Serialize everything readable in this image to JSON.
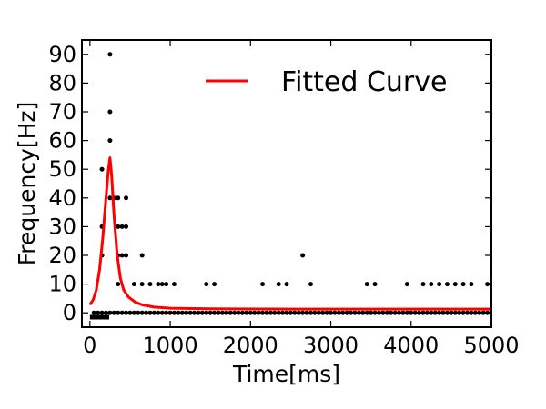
{
  "chart_data": {
    "type": "scatter",
    "title": "",
    "xlabel": "Time[ms]",
    "ylabel": "Frequency[Hz]",
    "xlim": [
      -100,
      5000
    ],
    "ylim": [
      -5,
      95
    ],
    "xticks": [
      0,
      1000,
      2000,
      3000,
      4000,
      5000
    ],
    "xtick_labels": [
      "0",
      "1000",
      "2000",
      "3000",
      "4000",
      "5000"
    ],
    "yticks": [
      0,
      10,
      20,
      30,
      40,
      50,
      60,
      70,
      80,
      90
    ],
    "ytick_labels": [
      "0",
      "10",
      "20",
      "30",
      "40",
      "50",
      "60",
      "70",
      "80",
      "90"
    ],
    "grid": false,
    "legend": {
      "position": "top-right",
      "entries": [
        {
          "label": "Fitted Curve",
          "color": "#ff0000"
        }
      ]
    },
    "stimulus_bar": {
      "x_start": 0,
      "x_end": 240,
      "y": -1.5,
      "color": "#000000"
    },
    "series": [
      {
        "kind": "points",
        "color": "#000000",
        "points": [
          [
            50,
            0
          ],
          [
            100,
            0
          ],
          [
            150,
            0
          ],
          [
            200,
            0
          ],
          [
            250,
            0
          ],
          [
            300,
            0
          ],
          [
            350,
            0
          ],
          [
            400,
            0
          ],
          [
            450,
            0
          ],
          [
            500,
            0
          ],
          [
            550,
            0
          ],
          [
            600,
            0
          ],
          [
            650,
            0
          ],
          [
            700,
            0
          ],
          [
            750,
            0
          ],
          [
            800,
            0
          ],
          [
            850,
            0
          ],
          [
            900,
            0
          ],
          [
            950,
            0
          ],
          [
            1000,
            0
          ],
          [
            1050,
            0
          ],
          [
            1100,
            0
          ],
          [
            1150,
            0
          ],
          [
            1200,
            0
          ],
          [
            1250,
            0
          ],
          [
            1300,
            0
          ],
          [
            1350,
            0
          ],
          [
            1400,
            0
          ],
          [
            1450,
            0
          ],
          [
            1500,
            0
          ],
          [
            1550,
            0
          ],
          [
            1600,
            0
          ],
          [
            1650,
            0
          ],
          [
            1700,
            0
          ],
          [
            1750,
            0
          ],
          [
            1800,
            0
          ],
          [
            1850,
            0
          ],
          [
            1900,
            0
          ],
          [
            1950,
            0
          ],
          [
            2000,
            0
          ],
          [
            2050,
            0
          ],
          [
            2100,
            0
          ],
          [
            2150,
            0
          ],
          [
            2200,
            0
          ],
          [
            2250,
            0
          ],
          [
            2300,
            0
          ],
          [
            2350,
            0
          ],
          [
            2400,
            0
          ],
          [
            2450,
            0
          ],
          [
            2500,
            0
          ],
          [
            2550,
            0
          ],
          [
            2600,
            0
          ],
          [
            2650,
            0
          ],
          [
            2700,
            0
          ],
          [
            2750,
            0
          ],
          [
            2800,
            0
          ],
          [
            2850,
            0
          ],
          [
            2900,
            0
          ],
          [
            2950,
            0
          ],
          [
            3000,
            0
          ],
          [
            3050,
            0
          ],
          [
            3100,
            0
          ],
          [
            3150,
            0
          ],
          [
            3200,
            0
          ],
          [
            3250,
            0
          ],
          [
            3300,
            0
          ],
          [
            3350,
            0
          ],
          [
            3400,
            0
          ],
          [
            3450,
            0
          ],
          [
            3500,
            0
          ],
          [
            3550,
            0
          ],
          [
            3600,
            0
          ],
          [
            3650,
            0
          ],
          [
            3700,
            0
          ],
          [
            3750,
            0
          ],
          [
            3800,
            0
          ],
          [
            3850,
            0
          ],
          [
            3900,
            0
          ],
          [
            3950,
            0
          ],
          [
            4000,
            0
          ],
          [
            4050,
            0
          ],
          [
            4100,
            0
          ],
          [
            4150,
            0
          ],
          [
            4200,
            0
          ],
          [
            4250,
            0
          ],
          [
            4300,
            0
          ],
          [
            4350,
            0
          ],
          [
            4400,
            0
          ],
          [
            4450,
            0
          ],
          [
            4500,
            0
          ],
          [
            4550,
            0
          ],
          [
            4600,
            0
          ],
          [
            4650,
            0
          ],
          [
            4700,
            0
          ],
          [
            4750,
            0
          ],
          [
            4800,
            0
          ],
          [
            4850,
            0
          ],
          [
            4900,
            0
          ],
          [
            4950,
            0
          ],
          [
            5000,
            0
          ],
          [
            150,
            50
          ],
          [
            150,
            30
          ],
          [
            150,
            20
          ],
          [
            250,
            90
          ],
          [
            250,
            70
          ],
          [
            250,
            60
          ],
          [
            250,
            40
          ],
          [
            300,
            40
          ],
          [
            350,
            30
          ],
          [
            350,
            20
          ],
          [
            350,
            10
          ],
          [
            350,
            40
          ],
          [
            400,
            30
          ],
          [
            400,
            20
          ],
          [
            450,
            40
          ],
          [
            450,
            30
          ],
          [
            450,
            20
          ],
          [
            550,
            10
          ],
          [
            650,
            20
          ],
          [
            650,
            10
          ],
          [
            750,
            10
          ],
          [
            850,
            10
          ],
          [
            900,
            10
          ],
          [
            950,
            10
          ],
          [
            1050,
            10
          ],
          [
            1450,
            10
          ],
          [
            1550,
            10
          ],
          [
            2150,
            10
          ],
          [
            2350,
            10
          ],
          [
            2450,
            10
          ],
          [
            2650,
            20
          ],
          [
            2750,
            10
          ],
          [
            3450,
            10
          ],
          [
            3550,
            10
          ],
          [
            3950,
            10
          ],
          [
            4150,
            10
          ],
          [
            4250,
            10
          ],
          [
            4350,
            10
          ],
          [
            4450,
            10
          ],
          [
            4550,
            10
          ],
          [
            4650,
            10
          ],
          [
            4750,
            10
          ],
          [
            4950,
            10
          ]
        ]
      },
      {
        "name": "Fitted Curve",
        "kind": "line",
        "color": "#ff0000",
        "points": [
          [
            0,
            2.8
          ],
          [
            40,
            4.5
          ],
          [
            80,
            8
          ],
          [
            120,
            15
          ],
          [
            160,
            26
          ],
          [
            200,
            40
          ],
          [
            230,
            50
          ],
          [
            250,
            54
          ],
          [
            270,
            48
          ],
          [
            300,
            34
          ],
          [
            340,
            20
          ],
          [
            380,
            12
          ],
          [
            420,
            8
          ],
          [
            480,
            5.5
          ],
          [
            560,
            3.8
          ],
          [
            650,
            2.8
          ],
          [
            800,
            2
          ],
          [
            1000,
            1.6
          ],
          [
            1500,
            1.4
          ],
          [
            2500,
            1.3
          ],
          [
            5000,
            1.3
          ]
        ]
      }
    ]
  }
}
